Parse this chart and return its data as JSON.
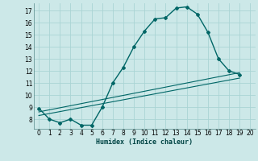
{
  "xlabel": "Humidex (Indice chaleur)",
  "bg_color": "#cce8e8",
  "grid_color": "#aad4d4",
  "line_color": "#006666",
  "main_curve_x": [
    0,
    1,
    2,
    3,
    4,
    5,
    6,
    7,
    8,
    9,
    10,
    11,
    12,
    13,
    14,
    15,
    16,
    17,
    18,
    19
  ],
  "main_curve_y": [
    8.9,
    8.0,
    7.7,
    8.0,
    7.5,
    7.5,
    9.0,
    11.0,
    12.3,
    14.0,
    15.3,
    16.3,
    16.4,
    17.2,
    17.3,
    16.7,
    15.2,
    13.0,
    12.0,
    11.7
  ],
  "line1_x": [
    0,
    19
  ],
  "line1_y": [
    8.3,
    11.4
  ],
  "line2_x": [
    0,
    19
  ],
  "line2_y": [
    8.6,
    11.85
  ],
  "xlim": [
    -0.5,
    20.5
  ],
  "ylim": [
    7.2,
    17.6
  ],
  "yticks": [
    8,
    9,
    10,
    11,
    12,
    13,
    14,
    15,
    16,
    17
  ],
  "xticks": [
    0,
    1,
    2,
    3,
    4,
    5,
    6,
    7,
    8,
    9,
    10,
    11,
    12,
    13,
    14,
    15,
    16,
    17,
    18,
    19,
    20
  ]
}
